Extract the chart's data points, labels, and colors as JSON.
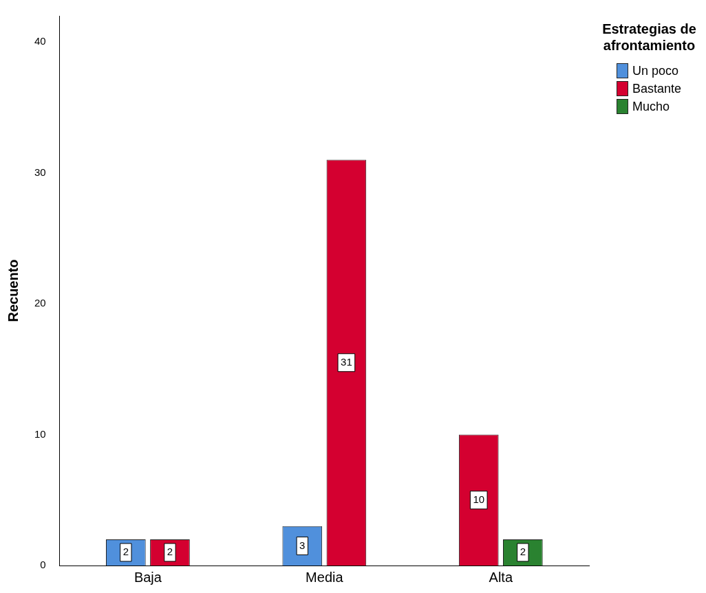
{
  "chart_data": {
    "type": "bar",
    "ylabel": "Recuento",
    "legend_title": "Estrategias de afrontamiento",
    "categories": [
      "Baja",
      "Media",
      "Alta"
    ],
    "series": [
      {
        "name": "Un poco",
        "color": "#5090dc",
        "values": [
          2,
          3,
          null
        ]
      },
      {
        "name": "Bastante",
        "color": "#d40030",
        "values": [
          2,
          31,
          10
        ]
      },
      {
        "name": "Mucho",
        "color": "#2a8230",
        "values": [
          null,
          null,
          2
        ]
      }
    ],
    "ylim": [
      0,
      42
    ],
    "yticks": [
      0,
      10,
      20,
      30,
      40
    ],
    "grid": false,
    "legend": "top right",
    "data_labels": true
  }
}
